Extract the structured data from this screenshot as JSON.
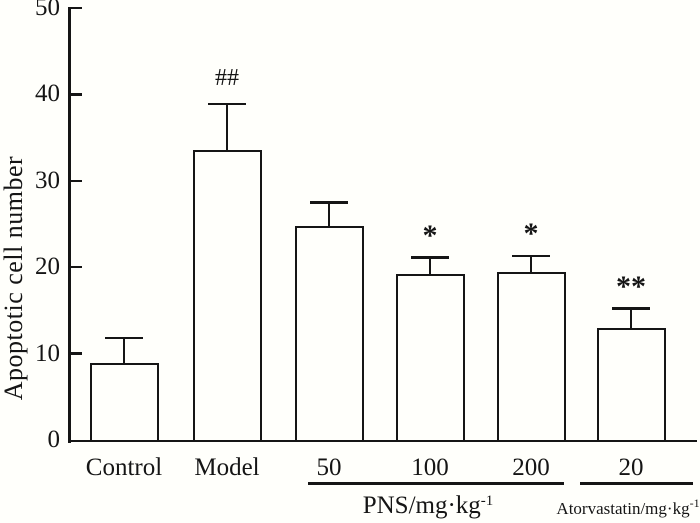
{
  "figure": {
    "background": "#fffffb",
    "ink": "#151515"
  },
  "chart_data": {
    "type": "bar",
    "title": "",
    "xlabel": "",
    "ylabel": "Apoptotic cell number",
    "ylim": [
      0,
      50
    ],
    "yticks": [
      0,
      10,
      20,
      30,
      40,
      50
    ],
    "grid": false,
    "legend": false,
    "bar_fill": "#fffffb",
    "bar_border": "#151515",
    "categories": [
      "Control",
      "Model",
      "50",
      "100",
      "200",
      "20"
    ],
    "values": [
      8.9,
      33.6,
      24.8,
      19.2,
      19.4,
      13.0
    ],
    "error_upper": [
      2.9,
      5.3,
      2.7,
      1.9,
      1.9,
      2.2
    ],
    "significance": [
      "",
      "##",
      "",
      "*",
      "*",
      "**"
    ],
    "groups": [
      {
        "label_main": "PNS/mg·kg",
        "label_sup": "-1",
        "bar_indexes": [
          2,
          3,
          4
        ]
      },
      {
        "label_main": "Atorvastatin/mg·kg",
        "label_sup": "-1",
        "bar_indexes": [
          5
        ]
      }
    ]
  }
}
